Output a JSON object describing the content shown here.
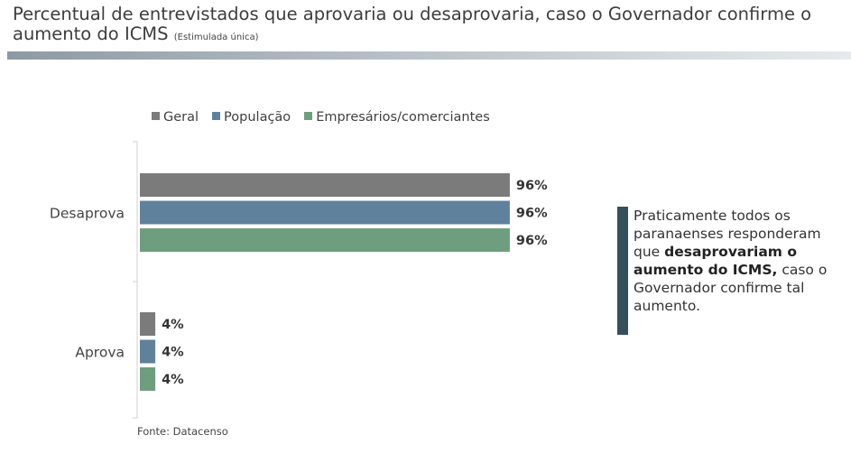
{
  "title": {
    "main": "Percentual de entrevistados que aprovaria ou desaprovaria, caso o Governador confirme o aumento do ICMS",
    "qualifier": "(Estimulada única)"
  },
  "source": "Fonte: Datacenso",
  "callout": {
    "text_before": "Praticamente todos os paranaenses responderam que ",
    "text_bold": "desaprovariam o aumento do ICMS,",
    "text_after": " caso o Governador confirme tal aumento."
  },
  "chart_data": {
    "type": "bar",
    "orientation": "horizontal",
    "categories": [
      "Desaprova",
      "Aprova"
    ],
    "series": [
      {
        "name": "Geral",
        "values": [
          96,
          4
        ],
        "color": "#7b7b7b"
      },
      {
        "name": "População",
        "values": [
          96,
          4
        ],
        "color": "#5f819b"
      },
      {
        "name": "Empresários/comerciantes",
        "values": [
          96,
          4
        ],
        "color": "#6f9e7e"
      }
    ],
    "value_suffix": "%",
    "xlim": [
      0,
      100
    ],
    "grid": false,
    "legend_position": "top"
  }
}
